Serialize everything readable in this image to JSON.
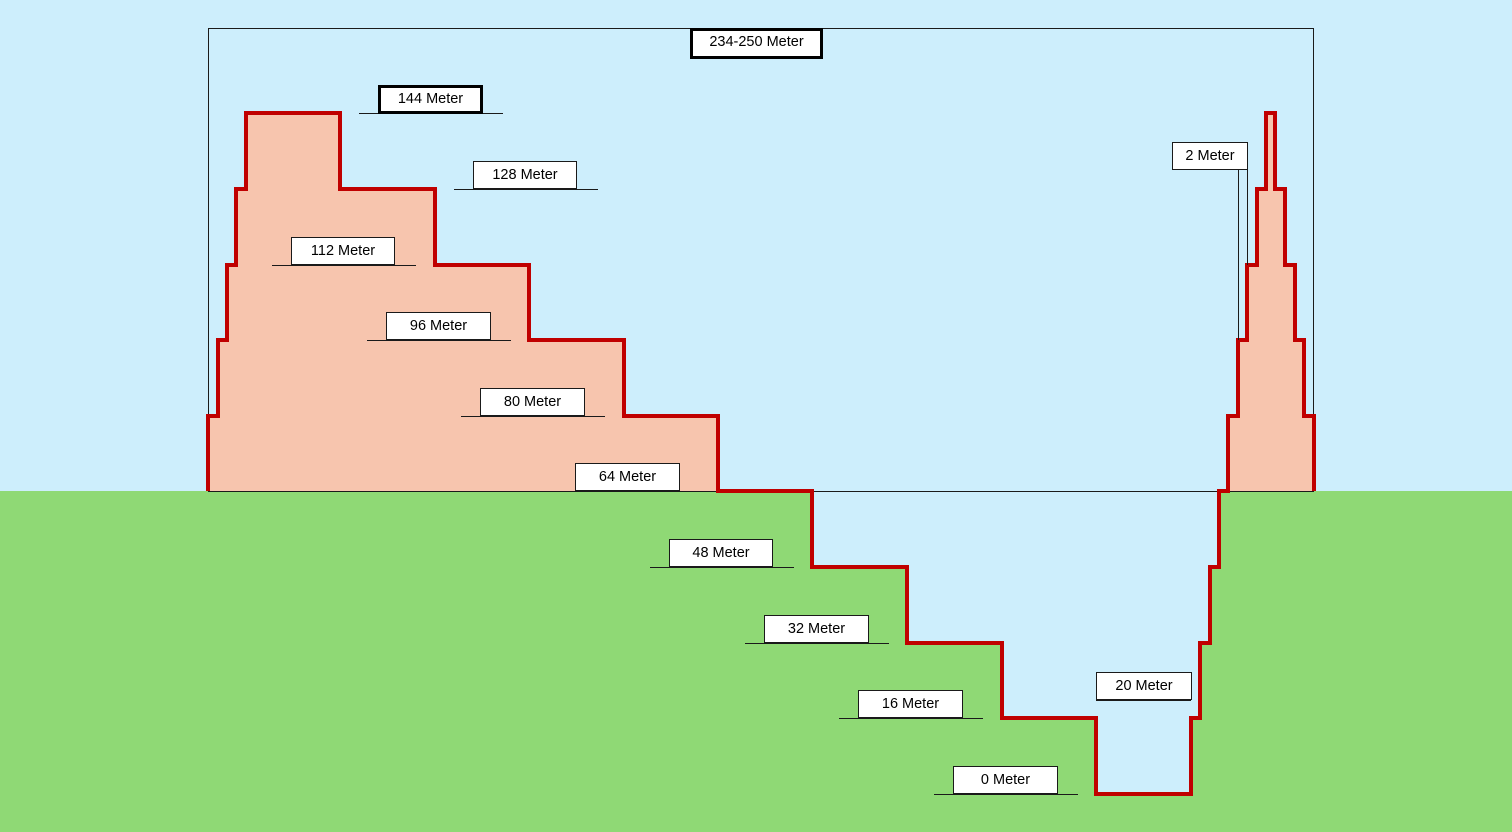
{
  "colors": {
    "sky": "#cdeefc",
    "ground": "#8fd975",
    "structure_fill": "#f7c5ae",
    "profile_stroke": "#c00000",
    "lines": "#1a1a1a"
  },
  "labels": {
    "total_height": "234-250 Meter",
    "level_144": "144 Meter",
    "level_128": "128 Meter",
    "level_112": "112 Meter",
    "level_96": "96 Meter",
    "level_80": "80 Meter",
    "level_64": "64 Meter",
    "level_48": "48 Meter",
    "level_32": "32 Meter",
    "level_16": "16 Meter",
    "level_0": "0 Meter",
    "pit_depth": "20 Meter",
    "spire_width": "2 Meter"
  }
}
